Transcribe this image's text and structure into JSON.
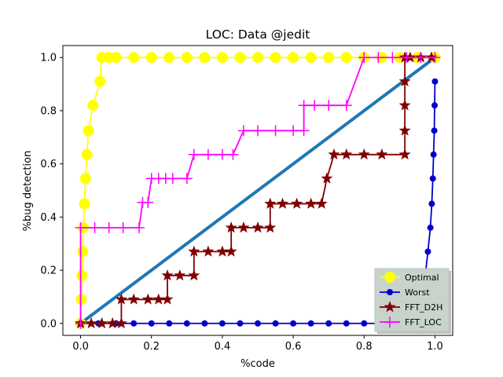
{
  "chart_data": {
    "type": "line",
    "title": "LOC: Data @jedit",
    "xlabel": "%code",
    "ylabel": "%bug detection",
    "xlim": [
      -0.05,
      1.05
    ],
    "ylim": [
      -0.045,
      1.045
    ],
    "x_ticks": [
      0.0,
      0.2,
      0.4,
      0.6,
      0.8,
      1.0
    ],
    "x_tick_labels": [
      "0.0",
      "0.2",
      "0.4",
      "0.6",
      "0.8",
      "1.0"
    ],
    "y_ticks": [
      0.0,
      0.2,
      0.4,
      0.6,
      0.8,
      1.0
    ],
    "y_tick_labels": [
      "0.0",
      "0.2",
      "0.4",
      "0.6",
      "0.8",
      "1.0"
    ],
    "grid": false,
    "legend_position": "bottom-right",
    "diagonal": {
      "x": [
        0,
        1
      ],
      "y": [
        0,
        1
      ],
      "color": "#1f77b4"
    },
    "series": [
      {
        "name": "Optimal",
        "color": "#ffff00",
        "marker": "circle-large",
        "x": [
          0.0,
          0.002,
          0.004,
          0.006,
          0.008,
          0.011,
          0.014,
          0.018,
          0.022,
          0.035,
          0.055,
          0.06,
          0.08,
          0.1,
          0.15,
          0.2,
          0.25,
          0.3,
          0.35,
          0.4,
          0.45,
          0.5,
          0.55,
          0.6,
          0.65,
          0.7,
          0.75,
          0.8,
          0.85,
          0.9,
          0.95,
          1.0
        ],
        "y": [
          0.0,
          0.09,
          0.18,
          0.27,
          0.36,
          0.45,
          0.545,
          0.635,
          0.725,
          0.82,
          0.91,
          1.0,
          1.0,
          1.0,
          1.0,
          1.0,
          1.0,
          1.0,
          1.0,
          1.0,
          1.0,
          1.0,
          1.0,
          1.0,
          1.0,
          1.0,
          1.0,
          1.0,
          1.0,
          1.0,
          1.0,
          1.0
        ]
      },
      {
        "name": "Worst",
        "color": "#0000cd",
        "marker": "circle-small",
        "x": [
          0.0,
          0.05,
          0.1,
          0.15,
          0.2,
          0.25,
          0.3,
          0.35,
          0.4,
          0.45,
          0.5,
          0.55,
          0.6,
          0.65,
          0.7,
          0.75,
          0.8,
          0.85,
          0.9,
          0.94,
          0.965,
          0.98,
          0.987,
          0.991,
          0.994,
          0.996,
          0.998,
          0.999,
          1.0
        ],
        "y": [
          0.0,
          0.0,
          0.0,
          0.0,
          0.0,
          0.0,
          0.0,
          0.0,
          0.0,
          0.0,
          0.0,
          0.0,
          0.0,
          0.0,
          0.0,
          0.0,
          0.0,
          0.0,
          0.0,
          0.0,
          0.09,
          0.27,
          0.36,
          0.45,
          0.545,
          0.635,
          0.725,
          0.82,
          0.91
        ]
      },
      {
        "name": "FFT_D2H",
        "color": "#800000",
        "marker": "star",
        "x": [
          0.0,
          0.03,
          0.06,
          0.09,
          0.115,
          0.115,
          0.15,
          0.19,
          0.22,
          0.245,
          0.245,
          0.28,
          0.32,
          0.32,
          0.36,
          0.4,
          0.425,
          0.425,
          0.46,
          0.5,
          0.535,
          0.535,
          0.57,
          0.61,
          0.65,
          0.68,
          0.695,
          0.715,
          0.75,
          0.8,
          0.85,
          0.915,
          0.915,
          0.915,
          0.915,
          0.915,
          0.93,
          0.96,
          0.99
        ],
        "y": [
          0.0,
          0.0,
          0.0,
          0.0,
          0.0,
          0.09,
          0.09,
          0.09,
          0.09,
          0.09,
          0.18,
          0.18,
          0.18,
          0.27,
          0.27,
          0.27,
          0.27,
          0.36,
          0.36,
          0.36,
          0.36,
          0.45,
          0.45,
          0.45,
          0.45,
          0.45,
          0.545,
          0.635,
          0.635,
          0.635,
          0.635,
          0.635,
          0.725,
          0.82,
          0.91,
          1.0,
          1.0,
          1.0,
          1.0
        ]
      },
      {
        "name": "FFT_LOC",
        "color": "#ff00ff",
        "marker": "plus",
        "x": [
          0.0,
          0.0,
          0.04,
          0.08,
          0.12,
          0.165,
          0.175,
          0.19,
          0.2,
          0.22,
          0.24,
          0.26,
          0.3,
          0.32,
          0.36,
          0.4,
          0.43,
          0.46,
          0.5,
          0.55,
          0.6,
          0.63,
          0.63,
          0.66,
          0.7,
          0.75,
          0.8,
          0.84,
          0.88,
          0.92,
          0.96,
          1.0
        ],
        "y": [
          0.0,
          0.36,
          0.36,
          0.36,
          0.36,
          0.36,
          0.455,
          0.455,
          0.545,
          0.545,
          0.545,
          0.545,
          0.545,
          0.635,
          0.635,
          0.635,
          0.635,
          0.725,
          0.725,
          0.725,
          0.725,
          0.725,
          0.82,
          0.82,
          0.82,
          0.82,
          1.0,
          1.0,
          1.0,
          1.0,
          1.0,
          1.0
        ]
      }
    ]
  }
}
